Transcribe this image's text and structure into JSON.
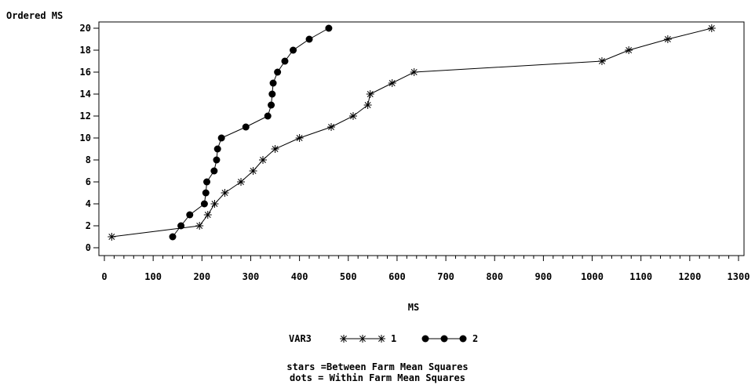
{
  "chart_data": {
    "type": "line",
    "title": "",
    "ylabel": "Ordered MS",
    "xlabel": "MS",
    "xlim": [
      0,
      1300
    ],
    "ylim": [
      0,
      20
    ],
    "x_ticks": [
      0,
      100,
      200,
      300,
      400,
      500,
      600,
      700,
      800,
      900,
      1000,
      1100,
      1200,
      1300
    ],
    "y_ticks": [
      0,
      2,
      4,
      6,
      8,
      10,
      12,
      14,
      16,
      18,
      20
    ],
    "grid": false,
    "legend": {
      "title": "VAR3",
      "placement": "bottom",
      "entries": [
        {
          "label": "1",
          "marker": "star"
        },
        {
          "label": "2",
          "marker": "dot"
        }
      ]
    },
    "series": [
      {
        "name": "1",
        "marker": "star",
        "color": "#000000",
        "points": [
          {
            "x": 15,
            "y": 1
          },
          {
            "x": 195,
            "y": 2
          },
          {
            "x": 212,
            "y": 3
          },
          {
            "x": 226,
            "y": 4
          },
          {
            "x": 247,
            "y": 5
          },
          {
            "x": 280,
            "y": 6
          },
          {
            "x": 305,
            "y": 7
          },
          {
            "x": 325,
            "y": 8
          },
          {
            "x": 350,
            "y": 9
          },
          {
            "x": 400,
            "y": 10
          },
          {
            "x": 465,
            "y": 11
          },
          {
            "x": 510,
            "y": 12
          },
          {
            "x": 540,
            "y": 13
          },
          {
            "x": 545,
            "y": 14
          },
          {
            "x": 590,
            "y": 15
          },
          {
            "x": 635,
            "y": 16
          },
          {
            "x": 1020,
            "y": 17
          },
          {
            "x": 1075,
            "y": 18
          },
          {
            "x": 1155,
            "y": 19
          },
          {
            "x": 1245,
            "y": 20
          }
        ]
      },
      {
        "name": "2",
        "marker": "dot",
        "color": "#000000",
        "points": [
          {
            "x": 140,
            "y": 1
          },
          {
            "x": 157,
            "y": 2
          },
          {
            "x": 175,
            "y": 3
          },
          {
            "x": 205,
            "y": 4
          },
          {
            "x": 208,
            "y": 5
          },
          {
            "x": 210,
            "y": 6
          },
          {
            "x": 225,
            "y": 7
          },
          {
            "x": 230,
            "y": 8
          },
          {
            "x": 232,
            "y": 9
          },
          {
            "x": 240,
            "y": 10
          },
          {
            "x": 290,
            "y": 11
          },
          {
            "x": 335,
            "y": 12
          },
          {
            "x": 342,
            "y": 13
          },
          {
            "x": 344,
            "y": 14
          },
          {
            "x": 346,
            "y": 15
          },
          {
            "x": 355,
            "y": 16
          },
          {
            "x": 370,
            "y": 17
          },
          {
            "x": 387,
            "y": 18
          },
          {
            "x": 420,
            "y": 19
          },
          {
            "x": 460,
            "y": 20
          }
        ]
      }
    ],
    "annotations": [
      "stars =Between Farm Mean Squares",
      "dots = Within Farm Mean Squares"
    ]
  }
}
